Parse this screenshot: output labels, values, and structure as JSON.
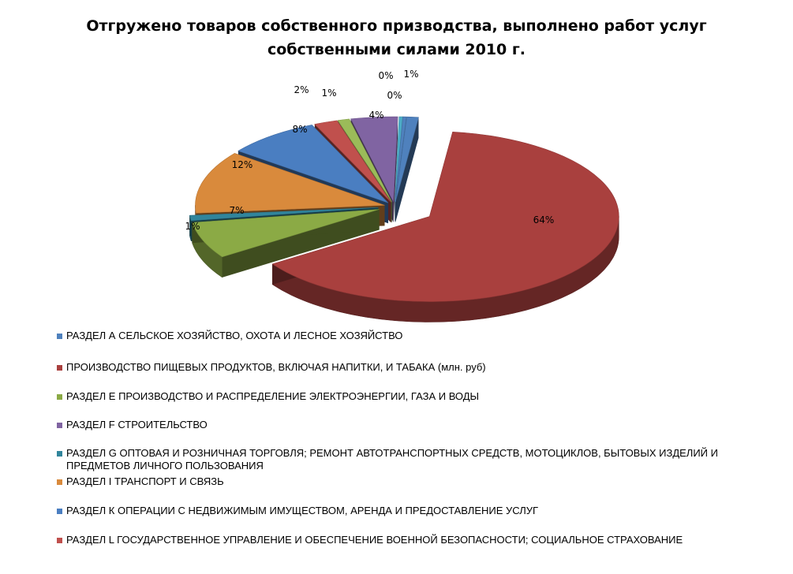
{
  "chart_data": {
    "type": "pie",
    "style": "3d-exploded",
    "title_lines": [
      "Отгружено товаров собственного призводства, выполнено работ услуг",
      "собственными силами  2010 г."
    ],
    "legend_position": "bottom",
    "slices": [
      {
        "label": "РАЗДЕЛ А СЕЛЬСКОЕ ХОЗЯЙСТВО, ОХОТА И ЛЕСНОЕ ХОЗЯЙСТВО",
        "value": 1,
        "pct_label": "1%",
        "color": "#4F81BD",
        "legend": true
      },
      {
        "label": "ПРОИЗВОДСТВО ПИЩЕВЫХ ПРОДУКТОВ, ВКЛЮЧАЯ  НАПИТКИ, И ТАБАКА (млн. руб)",
        "value": 64,
        "pct_label": "64%",
        "color": "#A9403E",
        "legend": true
      },
      {
        "label": "РАЗДЕЛ E ПРОИЗВОДСТВО И РАСПРЕДЕЛЕНИЕ ЭЛЕКТРОЭНЕРГИИ,  ГАЗА И ВОДЫ",
        "value": 7,
        "pct_label": "7%",
        "color": "#8BAA45",
        "legend": true
      },
      {
        "label": "",
        "value": 1,
        "pct_label": "1%",
        "color": "#31859C",
        "legend": false
      },
      {
        "label": "РАЗДЕЛ I ТРАНСПОРТ И СВЯЗЬ",
        "value": 12,
        "pct_label": "12%",
        "color": "#D98A3C",
        "legend": true
      },
      {
        "label": "РАЗДЕЛ К ОПЕРАЦИИ С НЕДВИЖИМЫМ ИМУЩЕСТВОМ, АРЕНДА И  ПРЕДОСТАВЛЕНИЕ УСЛУГ",
        "value": 8,
        "pct_label": "8%",
        "color": "#4A7EC1",
        "legend": true
      },
      {
        "label": "РАЗДЕЛ L ГОСУДАРСТВЕННОЕ УПРАВЛЕНИЕ И ОБЕСПЕЧЕНИЕ  ВОЕННОЙ БЕЗОПАСНОСТИ; СОЦИАЛЬНОЕ СТРАХОВАНИЕ",
        "value": 2,
        "pct_label": "2%",
        "color": "#C0504D",
        "legend": true
      },
      {
        "label": "",
        "value": 1,
        "pct_label": "1%",
        "color": "#9BBB59",
        "legend": false
      },
      {
        "label": "РАЗДЕЛ F СТРОИТЕЛЬСТВО",
        "value": 4,
        "pct_label": "4%",
        "color": "#8064A2",
        "legend": true
      },
      {
        "label": "",
        "value": 0.3,
        "pct_label": "0%",
        "color": "#4BACC6",
        "legend": false
      },
      {
        "label": "",
        "value": 0.3,
        "pct_label": "0%",
        "color": "#4F81BD",
        "legend": false
      }
    ],
    "legend_order": [
      {
        "label": "РАЗДЕЛ А СЕЛЬСКОЕ ХОЗЯЙСТВО, ОХОТА И ЛЕСНОЕ ХОЗЯЙСТВО",
        "color": "#4F81BD"
      },
      {
        "label": "ПРОИЗВОДСТВО ПИЩЕВЫХ ПРОДУКТОВ, ВКЛЮЧАЯ  НАПИТКИ, И ТАБАКА (млн. руб)",
        "color": "#A9403E"
      },
      {
        "label": "РАЗДЕЛ E ПРОИЗВОДСТВО И РАСПРЕДЕЛЕНИЕ ЭЛЕКТРОЭНЕРГИИ,  ГАЗА И ВОДЫ",
        "color": "#8BAA45"
      },
      {
        "label": "РАЗДЕЛ F СТРОИТЕЛЬСТВО",
        "color": "#8064A2"
      },
      {
        "label": "РАЗДЕЛ G ОПТОВАЯ И РОЗНИЧНАЯ ТОРГОВЛЯ; РЕМОНТ  АВТОТРАНСПОРТНЫХ СРЕДСТВ, МОТОЦИКЛОВ, БЫТОВЫХ ИЗДЕЛИЙ И  ПРЕДМЕТОВ ЛИЧНОГО ПОЛЬЗОВАНИЯ",
        "color": "#31859C"
      },
      {
        "label": "РАЗДЕЛ I ТРАНСПОРТ И СВЯЗЬ",
        "color": "#D98A3C"
      },
      {
        "label": "РАЗДЕЛ К ОПЕРАЦИИ С НЕДВИЖИМЫМ ИМУЩЕСТВОМ, АРЕНДА И  ПРЕДОСТАВЛЕНИЕ УСЛУГ",
        "color": "#4A7EC1"
      },
      {
        "label": "РАЗДЕЛ L ГОСУДАРСТВЕННОЕ УПРАВЛЕНИЕ И ОБЕСПЕЧЕНИЕ  ВОЕННОЙ БЕЗОПАСНОСТИ; СОЦИАЛЬНОЕ СТРАХОВАНИЕ",
        "color": "#C0504D"
      }
    ]
  }
}
